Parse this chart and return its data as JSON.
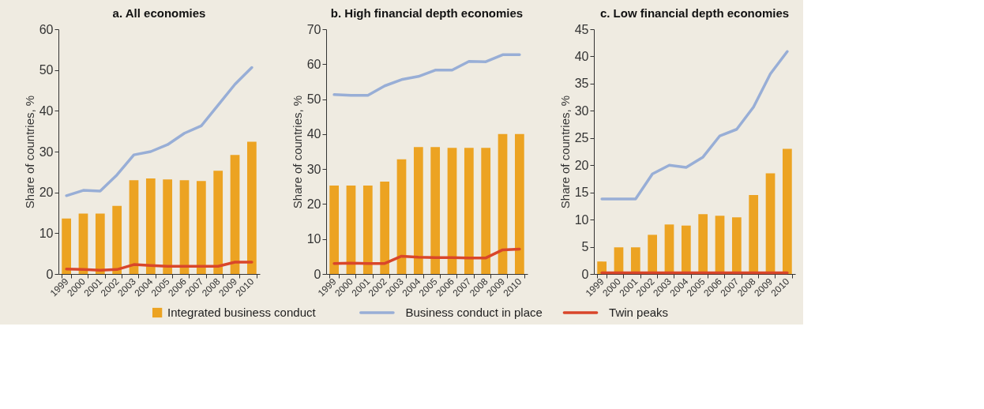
{
  "chart_data": [
    {
      "type": "bar",
      "title": "a.  All economies",
      "ylabel": "Share of countries, %",
      "categories": [
        "1999",
        "2000",
        "2001",
        "2002",
        "2003",
        "2004",
        "2005",
        "2006",
        "2007",
        "2008",
        "2009",
        "2010"
      ],
      "ylim": [
        0,
        60
      ],
      "yticks": [
        0,
        10,
        20,
        30,
        40,
        50,
        60
      ],
      "grid": false,
      "line_style": "solid",
      "marker": "none",
      "series": [
        {
          "color": "#eca322",
          "values": [
            13.6,
            14.8,
            14.8,
            16.7,
            23.0,
            23.4,
            23.2,
            23.0,
            22.8,
            25.3,
            29.2,
            32.4
          ]
        },
        {
          "type": "line",
          "color": "#98aed6",
          "values": [
            19.2,
            20.5,
            20.3,
            24.3,
            29.2,
            30.0,
            31.7,
            34.5,
            36.3,
            41.4,
            46.5,
            50.6
          ]
        },
        {
          "type": "line",
          "color": "#d9462a",
          "values": [
            1.2,
            1.1,
            0.9,
            1.1,
            2.3,
            2.1,
            1.9,
            1.9,
            1.9,
            1.9,
            2.9,
            2.9
          ]
        }
      ]
    },
    {
      "type": "bar",
      "title": "b.  High financial depth economies",
      "ylabel": "Share of countries, %",
      "categories": [
        "1999",
        "2000",
        "2001",
        "2002",
        "2003",
        "2004",
        "2005",
        "2006",
        "2007",
        "2008",
        "2009",
        "2010"
      ],
      "ylim": [
        0,
        70
      ],
      "yticks": [
        0,
        10,
        20,
        30,
        40,
        50,
        60,
        70
      ],
      "grid": false,
      "legend": "bottom",
      "line_style": "solid",
      "marker": "none",
      "series": [
        {
          "name": "Integrated business conduct",
          "color": "#eca322",
          "values": [
            25.3,
            25.3,
            25.3,
            26.4,
            32.8,
            36.3,
            36.3,
            36.1,
            36.1,
            36.1,
            40.0,
            40.0
          ]
        },
        {
          "name": "Business conduct in place",
          "type": "line",
          "color": "#98aed6",
          "values": [
            51.3,
            51.1,
            51.1,
            53.8,
            55.6,
            56.5,
            58.3,
            58.3,
            60.8,
            60.7,
            62.7,
            62.7
          ]
        },
        {
          "name": "Twin peaks",
          "type": "line",
          "color": "#d9462a",
          "values": [
            3.0,
            3.1,
            3.0,
            3.0,
            5.1,
            4.8,
            4.7,
            4.7,
            4.6,
            4.6,
            6.9,
            7.1
          ]
        }
      ]
    },
    {
      "type": "bar",
      "title": "c.  Low financial depth economies",
      "ylabel": "Share of countries, %",
      "categories": [
        "1999",
        "2000",
        "2001",
        "2002",
        "2003",
        "2004",
        "2005",
        "2006",
        "2007",
        "2008",
        "2009",
        "2010"
      ],
      "ylim": [
        0,
        45
      ],
      "yticks": [
        0,
        5,
        10,
        15,
        20,
        25,
        30,
        35,
        40,
        45
      ],
      "grid": false,
      "line_style": "solid",
      "marker": "none",
      "series": [
        {
          "color": "#eca322",
          "values": [
            2.3,
            4.9,
            4.9,
            7.2,
            9.1,
            8.9,
            11.0,
            10.7,
            10.4,
            14.5,
            18.5,
            23.0
          ]
        },
        {
          "type": "line",
          "color": "#98aed6",
          "values": [
            13.8,
            13.8,
            13.8,
            18.4,
            20.0,
            19.6,
            21.5,
            25.4,
            26.6,
            30.7,
            36.8,
            40.9
          ]
        },
        {
          "type": "line",
          "color": "#d9462a",
          "values": [
            0.2,
            0.2,
            0.2,
            0.2,
            0.2,
            0.2,
            0.2,
            0.2,
            0.2,
            0.2,
            0.2,
            0.2
          ]
        }
      ]
    }
  ]
}
